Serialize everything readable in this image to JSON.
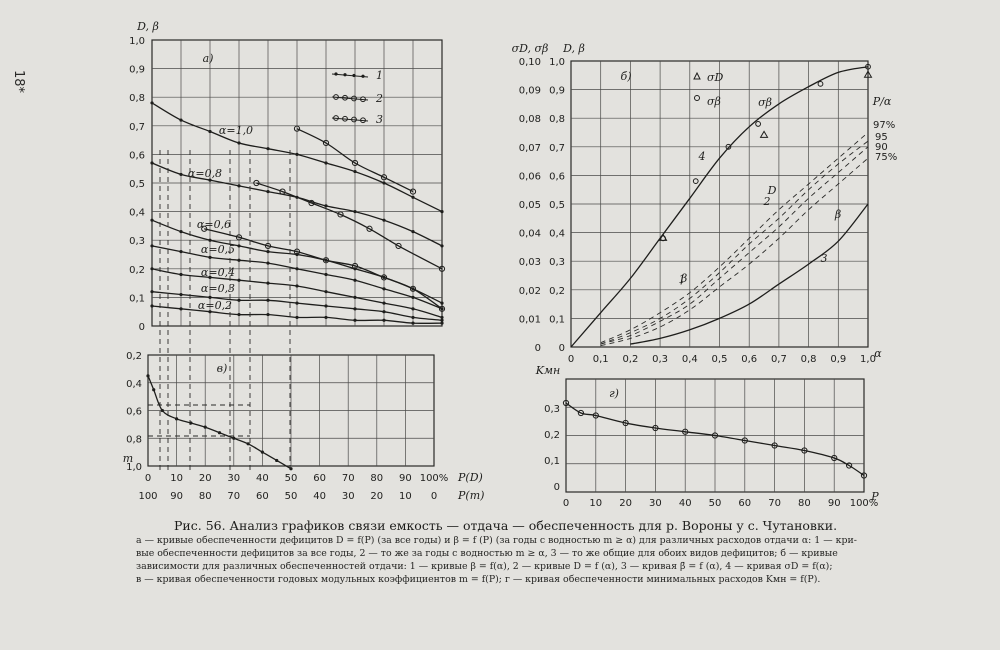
{
  "page_number": "18*",
  "caption": {
    "title": "Рис. 56. Анализ графиков связи емкость — отдача — обеспеченность для р. Вороны у с. Чутановки.",
    "lines": [
      "а — кривые обеспеченности дефицитов D = f(P) (за все годы) и β = f (P) (за годы с водностью m ≥ α) для различных расходов отдачи α: 1 — кри-",
      "вые обеспеченности дефицитов за все годы, 2 — то же за годы с водностью m ≥ α, 3 — то же общие для обоих видов дефицитов; б — кривые",
      "зависимости для различных обеспеченностей отдачи: 1 — кривые β = f(α), 2 — кривые D = f (α), 3 — кривая β̄ = f (α), 4 — кривая σD = f(α);",
      "в — кривая обеспеченности годовых модульных коэффициентов m = f(P); г — кривая обеспеченности минимальных расходов Kмн = f(P)."
    ]
  },
  "chart_data": [
    {
      "id": "a",
      "panel_label": "а)",
      "type": "line",
      "ylabel": "D, β",
      "ylim": [
        0,
        1.0
      ],
      "y_ticks": [
        "1,0",
        "0,9",
        "0,8",
        "0,7",
        "0,6",
        "0,5",
        "0,4",
        "0,3",
        "0,2",
        "0,1",
        "0"
      ],
      "x_ticks": [
        "0",
        "10",
        "20",
        "30",
        "40",
        "50",
        "60",
        "70",
        "80",
        "90",
        "100%"
      ],
      "xlabel": "P(D)",
      "legend": {
        "items": [
          {
            "label": "1",
            "marker": "dot"
          },
          {
            "label": "2",
            "marker": "ring"
          },
          {
            "label": "3",
            "marker": "dot-ring"
          }
        ],
        "placement": "top-right"
      },
      "curve_labels": [
        "α=1,0",
        "α=0,8",
        "α=0,6",
        "α=0,5",
        "α=0,4",
        "α=0,3",
        "α=0,2"
      ],
      "series": [
        {
          "name": "α=1,0",
          "x": [
            0,
            10,
            20,
            30,
            40,
            50,
            60,
            70,
            80,
            90,
            100
          ],
          "y": [
            0.78,
            0.72,
            0.68,
            0.64,
            0.62,
            0.6,
            0.57,
            0.54,
            0.5,
            0.45,
            0.4
          ]
        },
        {
          "name": "α=0,8",
          "x": [
            0,
            10,
            20,
            30,
            40,
            50,
            60,
            70,
            80,
            90,
            100
          ],
          "y": [
            0.57,
            0.53,
            0.51,
            0.49,
            0.47,
            0.45,
            0.42,
            0.4,
            0.37,
            0.33,
            0.28
          ]
        },
        {
          "name": "α=0,6",
          "x": [
            0,
            10,
            20,
            30,
            40,
            50,
            60,
            70,
            80,
            90,
            100
          ],
          "y": [
            0.37,
            0.33,
            0.3,
            0.28,
            0.26,
            0.25,
            0.23,
            0.2,
            0.17,
            0.13,
            0.08
          ]
        },
        {
          "name": "α=0,5",
          "x": [
            0,
            10,
            20,
            30,
            40,
            50,
            60,
            70,
            80,
            90,
            100
          ],
          "y": [
            0.28,
            0.26,
            0.24,
            0.23,
            0.22,
            0.2,
            0.18,
            0.16,
            0.13,
            0.1,
            0.06
          ]
        },
        {
          "name": "α=0,4",
          "x": [
            0,
            10,
            20,
            30,
            40,
            50,
            60,
            70,
            80,
            90,
            100
          ],
          "y": [
            0.2,
            0.18,
            0.17,
            0.16,
            0.15,
            0.14,
            0.12,
            0.1,
            0.08,
            0.06,
            0.03
          ]
        },
        {
          "name": "α=0,3",
          "x": [
            0,
            10,
            20,
            30,
            40,
            50,
            60,
            70,
            80,
            90,
            100
          ],
          "y": [
            0.12,
            0.11,
            0.1,
            0.09,
            0.09,
            0.08,
            0.07,
            0.06,
            0.05,
            0.03,
            0.02
          ]
        },
        {
          "name": "α=0,2",
          "x": [
            0,
            10,
            20,
            30,
            40,
            50,
            60,
            70,
            80,
            90,
            100
          ],
          "y": [
            0.07,
            0.06,
            0.05,
            0.04,
            0.04,
            0.03,
            0.03,
            0.02,
            0.02,
            0.01,
            0.01
          ]
        },
        {
          "name": "2 (α=1,0)",
          "x": [
            50,
            60,
            70,
            80,
            90
          ],
          "y": [
            0.69,
            0.64,
            0.57,
            0.52,
            0.47
          ]
        },
        {
          "name": "2 (α=0,8)",
          "x": [
            36,
            45,
            55,
            65,
            75,
            85,
            100
          ],
          "y": [
            0.5,
            0.47,
            0.43,
            0.39,
            0.34,
            0.28,
            0.2
          ]
        },
        {
          "name": "2 (α=0,6)",
          "x": [
            18,
            30,
            40,
            50,
            60,
            70,
            80,
            90,
            100
          ],
          "y": [
            0.34,
            0.31,
            0.28,
            0.26,
            0.23,
            0.21,
            0.17,
            0.13,
            0.06
          ]
        }
      ]
    },
    {
      "id": "b",
      "panel_label": "б)",
      "type": "line",
      "ylabel_left": "σD, σβ",
      "ylabel_right": "D, β",
      "xlabel": "α",
      "y_ticks_left": [
        "0,10",
        "0,09",
        "0,08",
        "0,07",
        "0,06",
        "0,05",
        "0,04",
        "0,03",
        "0,02",
        "0,01",
        "0"
      ],
      "y_ticks_right": [
        "1,0",
        "0,9",
        "0,8",
        "0,7",
        "0,6",
        "0,5",
        "0,4",
        "0,3",
        "0,2",
        "0,1",
        "0"
      ],
      "x_ticks": [
        "0",
        "0,1",
        "0,2",
        "0,3",
        "0,4",
        "0,5",
        "0,6",
        "0,7",
        "0,8",
        "0,9",
        "1,0"
      ],
      "legend": {
        "items": [
          "σD",
          "σβ"
        ],
        "placement": "top-center"
      },
      "p_label": "P/α",
      "p_values": [
        "97%",
        "95",
        "90",
        "75%"
      ],
      "curve_labels": [
        "σβ",
        "4",
        "1",
        "β",
        "2",
        "D",
        "β",
        "3"
      ],
      "series": [
        {
          "name": "σβ",
          "x": [
            0,
            0.1,
            0.2,
            0.3,
            0.4,
            0.5,
            0.6,
            0.7,
            0.8,
            0.9,
            1.0
          ],
          "y": [
            0,
            0.12,
            0.24,
            0.38,
            0.52,
            0.66,
            0.77,
            0.85,
            0.91,
            0.96,
            0.98
          ]
        },
        {
          "name": "β",
          "x": [
            0.2,
            0.3,
            0.4,
            0.5,
            0.6,
            0.7,
            0.8,
            0.9,
            1.0
          ],
          "y": [
            0.01,
            0.03,
            0.06,
            0.1,
            0.15,
            0.22,
            0.29,
            0.37,
            0.5
          ]
        },
        {
          "name": "D 75%",
          "x": [
            0.1,
            0.2,
            0.3,
            0.4,
            0.5,
            0.6,
            0.7,
            0.8,
            0.9,
            1.0
          ],
          "y": [
            0.005,
            0.03,
            0.07,
            0.13,
            0.21,
            0.29,
            0.38,
            0.48,
            0.57,
            0.66
          ]
        },
        {
          "name": "D 90%",
          "x": [
            0.1,
            0.2,
            0.3,
            0.4,
            0.5,
            0.6,
            0.7,
            0.8,
            0.9,
            1.0
          ],
          "y": [
            0.01,
            0.04,
            0.09,
            0.15,
            0.24,
            0.33,
            0.42,
            0.52,
            0.61,
            0.7
          ]
        },
        {
          "name": "D 95%",
          "x": [
            0.1,
            0.2,
            0.3,
            0.4,
            0.5,
            0.6,
            0.7,
            0.8,
            0.9,
            1.0
          ],
          "y": [
            0.01,
            0.05,
            0.1,
            0.17,
            0.26,
            0.36,
            0.45,
            0.55,
            0.64,
            0.72
          ]
        },
        {
          "name": "D 97%",
          "x": [
            0.1,
            0.2,
            0.3,
            0.4,
            0.5,
            0.6,
            0.7,
            0.8,
            0.9,
            1.0
          ],
          "y": [
            0.015,
            0.06,
            0.12,
            0.19,
            0.28,
            0.38,
            0.48,
            0.57,
            0.66,
            0.75
          ]
        }
      ]
    },
    {
      "id": "v",
      "panel_label": "в)",
      "type": "line",
      "ylabel": "m",
      "y_ticks": [
        "0,2",
        "0,4",
        "0,6",
        "0,8",
        "1,0"
      ],
      "x_ticks_top": [
        "0",
        "10",
        "20",
        "30",
        "40",
        "50",
        "60",
        "70",
        "80",
        "90",
        "100%"
      ],
      "xlabel_top": "P(D)",
      "x_ticks_bottom": [
        "100",
        "90",
        "80",
        "70",
        "60",
        "50",
        "40",
        "30",
        "20",
        "10",
        "0"
      ],
      "xlabel_bottom": "P(m)",
      "series": [
        {
          "name": "m = f(P)",
          "x": [
            0,
            2,
            5,
            10,
            15,
            20,
            25,
            30,
            35,
            40,
            45,
            50
          ],
          "y": [
            0.35,
            0.45,
            0.6,
            0.66,
            0.69,
            0.72,
            0.76,
            0.8,
            0.84,
            0.9,
            0.96,
            1.02
          ]
        }
      ]
    },
    {
      "id": "g",
      "panel_label": "г)",
      "type": "line",
      "ylabel": "Kмн",
      "y_ticks": [
        "0,3",
        "0,2",
        "0,1",
        "0"
      ],
      "x_ticks": [
        "0",
        "10",
        "20",
        "30",
        "40",
        "50",
        "60",
        "70",
        "80",
        "90",
        "100%"
      ],
      "xlabel": "P",
      "series": [
        {
          "name": "Kмн = f(P)",
          "x": [
            0,
            5,
            10,
            20,
            30,
            40,
            50,
            60,
            70,
            80,
            90,
            95,
            100
          ],
          "y": [
            0.3,
            0.26,
            0.25,
            0.22,
            0.2,
            0.185,
            0.17,
            0.15,
            0.13,
            0.11,
            0.08,
            0.05,
            0.01
          ]
        }
      ]
    }
  ]
}
